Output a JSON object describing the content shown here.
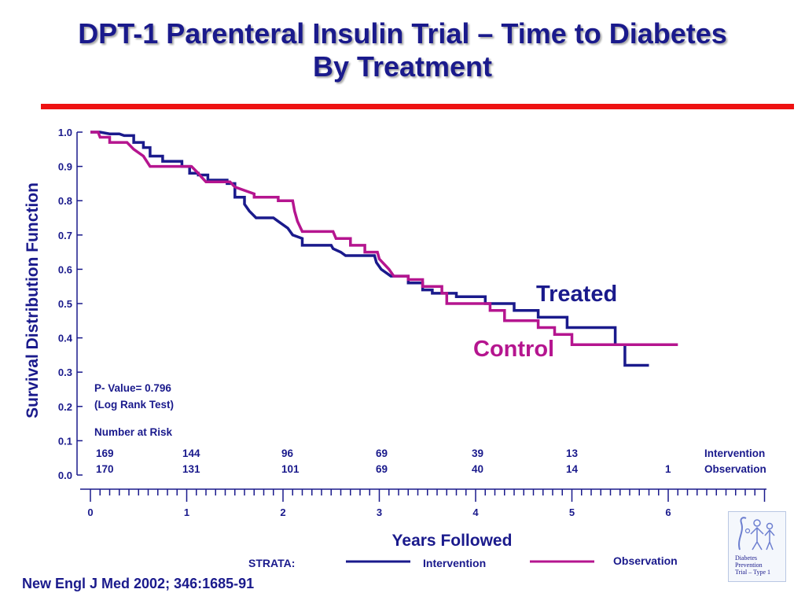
{
  "title": {
    "line1": "DPT-1 Parenteral Insulin Trial – Time to Diabetes",
    "line2": "By Treatment"
  },
  "citation": "New Engl J Med 2002; 346:1685-91",
  "logo": {
    "line1": "Diabetes",
    "line2": "Prevention",
    "line3": "Trial – Type 1"
  },
  "colors": {
    "treated": "#1a1a8c",
    "control": "#b5158f",
    "accent": "#ee1111"
  },
  "chart_data": {
    "type": "line",
    "title": "DPT-1 Parenteral Insulin Trial – Time to Diabetes By Treatment",
    "xlabel": "Years Followed",
    "ylabel": "Survival Distribution Function",
    "xlim": [
      0,
      7
    ],
    "ylim": [
      0,
      1
    ],
    "x_ticks": [
      "0",
      "1",
      "2",
      "3",
      "4",
      "5",
      "6"
    ],
    "y_ticks": [
      "0.0",
      "0.1",
      "0.2",
      "0.3",
      "0.4",
      "0.5",
      "0.6",
      "0.7",
      "0.8",
      "0.9",
      "1.0"
    ],
    "curve_labels": {
      "treated": "Treated",
      "control": "Control"
    },
    "pvalue": {
      "line1": "P- Value= 0.796",
      "line2": "(Log Rank Test)"
    },
    "risk_table": {
      "title": "Number at Risk",
      "rows": [
        {
          "label": "Intervention",
          "values": [
            "169",
            "144",
            "96",
            "69",
            "39",
            "13",
            ""
          ]
        },
        {
          "label": "Observation",
          "values": [
            "170",
            "131",
            "101",
            "69",
            "40",
            "14",
            "1"
          ]
        }
      ]
    },
    "legend": {
      "title": "STRATA:",
      "items": [
        "Intervention",
        "Observation"
      ],
      "placement": "bottom"
    },
    "series": [
      {
        "name": "Intervention",
        "points": [
          [
            0.0,
            1.0
          ],
          [
            0.1,
            1.0
          ],
          [
            0.2,
            0.995
          ],
          [
            0.3,
            0.995
          ],
          [
            0.35,
            0.99
          ],
          [
            0.45,
            0.99
          ],
          [
            0.45,
            0.97
          ],
          [
            0.55,
            0.97
          ],
          [
            0.55,
            0.955
          ],
          [
            0.62,
            0.955
          ],
          [
            0.62,
            0.93
          ],
          [
            0.75,
            0.93
          ],
          [
            0.75,
            0.915
          ],
          [
            0.95,
            0.915
          ],
          [
            0.95,
            0.9
          ],
          [
            1.03,
            0.9
          ],
          [
            1.03,
            0.88
          ],
          [
            1.12,
            0.88
          ],
          [
            1.12,
            0.875
          ],
          [
            1.22,
            0.875
          ],
          [
            1.22,
            0.86
          ],
          [
            1.42,
            0.86
          ],
          [
            1.42,
            0.85
          ],
          [
            1.5,
            0.85
          ],
          [
            1.5,
            0.81
          ],
          [
            1.6,
            0.81
          ],
          [
            1.6,
            0.79
          ],
          [
            1.65,
            0.77
          ],
          [
            1.72,
            0.75
          ],
          [
            1.9,
            0.75
          ],
          [
            1.95,
            0.74
          ],
          [
            2.05,
            0.72
          ],
          [
            2.1,
            0.7
          ],
          [
            2.2,
            0.69
          ],
          [
            2.2,
            0.67
          ],
          [
            2.5,
            0.67
          ],
          [
            2.52,
            0.66
          ],
          [
            2.6,
            0.65
          ],
          [
            2.65,
            0.64
          ],
          [
            2.95,
            0.64
          ],
          [
            2.97,
            0.62
          ],
          [
            3.02,
            0.6
          ],
          [
            3.12,
            0.58
          ],
          [
            3.3,
            0.58
          ],
          [
            3.3,
            0.56
          ],
          [
            3.45,
            0.56
          ],
          [
            3.45,
            0.54
          ],
          [
            3.55,
            0.54
          ],
          [
            3.55,
            0.53
          ],
          [
            3.8,
            0.53
          ],
          [
            3.8,
            0.52
          ],
          [
            4.1,
            0.52
          ],
          [
            4.1,
            0.5
          ],
          [
            4.4,
            0.5
          ],
          [
            4.4,
            0.48
          ],
          [
            4.65,
            0.48
          ],
          [
            4.65,
            0.46
          ],
          [
            4.95,
            0.46
          ],
          [
            4.95,
            0.43
          ],
          [
            5.45,
            0.43
          ],
          [
            5.45,
            0.38
          ],
          [
            5.55,
            0.38
          ],
          [
            5.55,
            0.32
          ],
          [
            5.8,
            0.32
          ]
        ]
      },
      {
        "name": "Observation",
        "points": [
          [
            0.0,
            1.0
          ],
          [
            0.08,
            1.0
          ],
          [
            0.1,
            0.985
          ],
          [
            0.2,
            0.985
          ],
          [
            0.2,
            0.97
          ],
          [
            0.38,
            0.97
          ],
          [
            0.45,
            0.95
          ],
          [
            0.55,
            0.93
          ],
          [
            0.62,
            0.9
          ],
          [
            1.05,
            0.9
          ],
          [
            1.12,
            0.88
          ],
          [
            1.15,
            0.87
          ],
          [
            1.2,
            0.855
          ],
          [
            1.45,
            0.855
          ],
          [
            1.5,
            0.84
          ],
          [
            1.6,
            0.83
          ],
          [
            1.7,
            0.82
          ],
          [
            1.7,
            0.81
          ],
          [
            1.95,
            0.81
          ],
          [
            1.95,
            0.8
          ],
          [
            2.1,
            0.8
          ],
          [
            2.12,
            0.77
          ],
          [
            2.15,
            0.74
          ],
          [
            2.2,
            0.71
          ],
          [
            2.52,
            0.71
          ],
          [
            2.55,
            0.69
          ],
          [
            2.7,
            0.69
          ],
          [
            2.7,
            0.67
          ],
          [
            2.85,
            0.67
          ],
          [
            2.85,
            0.65
          ],
          [
            2.98,
            0.65
          ],
          [
            3.0,
            0.63
          ],
          [
            3.1,
            0.6
          ],
          [
            3.15,
            0.58
          ],
          [
            3.3,
            0.58
          ],
          [
            3.3,
            0.57
          ],
          [
            3.45,
            0.57
          ],
          [
            3.45,
            0.55
          ],
          [
            3.65,
            0.55
          ],
          [
            3.65,
            0.53
          ],
          [
            3.7,
            0.53
          ],
          [
            3.7,
            0.5
          ],
          [
            4.15,
            0.5
          ],
          [
            4.15,
            0.48
          ],
          [
            4.3,
            0.48
          ],
          [
            4.3,
            0.45
          ],
          [
            4.65,
            0.45
          ],
          [
            4.65,
            0.43
          ],
          [
            4.82,
            0.43
          ],
          [
            4.82,
            0.41
          ],
          [
            5.0,
            0.41
          ],
          [
            5.0,
            0.38
          ],
          [
            6.1,
            0.38
          ]
        ]
      }
    ]
  }
}
